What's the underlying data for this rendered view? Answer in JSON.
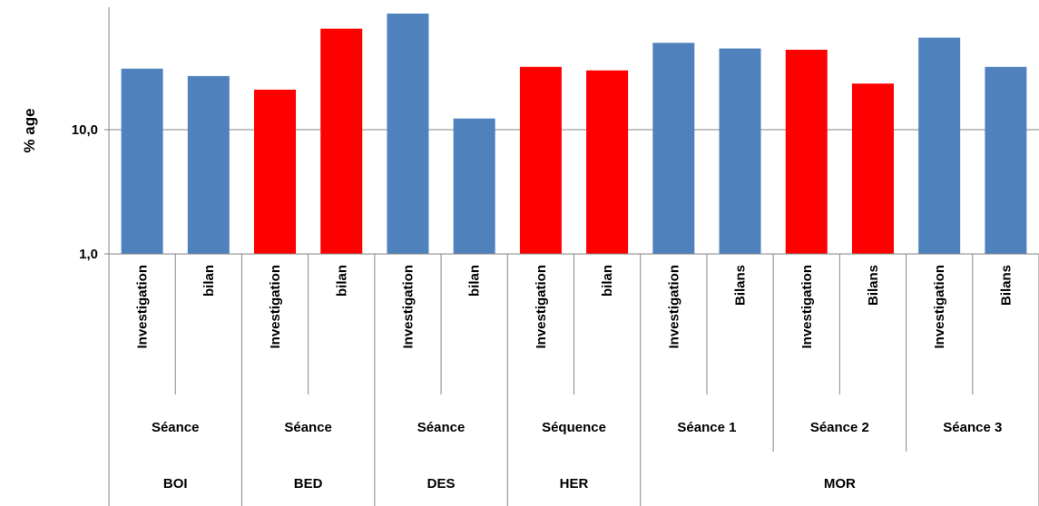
{
  "chart_data": {
    "type": "bar",
    "scale": "log",
    "ylabel": "% age",
    "ylim": [
      1,
      90
    ],
    "yticks": [
      {
        "value": 1,
        "label": "1,0"
      },
      {
        "value": 10,
        "label": "10,0"
      }
    ],
    "grid": true,
    "colors": {
      "blue": "#4F81BD",
      "red": "#FF0000"
    },
    "bars": [
      {
        "label": "Investigation",
        "value": 31,
        "color": "blue"
      },
      {
        "label": "bilan",
        "value": 27,
        "color": "blue"
      },
      {
        "label": "Investigation",
        "value": 21,
        "color": "red"
      },
      {
        "label": "bilan",
        "value": 65,
        "color": "red"
      },
      {
        "label": "Investigation",
        "value": 86,
        "color": "blue"
      },
      {
        "label": "bilan",
        "value": 12.3,
        "color": "blue"
      },
      {
        "label": "Investigation",
        "value": 32,
        "color": "red"
      },
      {
        "label": "bilan",
        "value": 30,
        "color": "red"
      },
      {
        "label": "Investigation",
        "value": 50,
        "color": "blue"
      },
      {
        "label": "Bilans",
        "value": 45,
        "color": "blue"
      },
      {
        "label": "Investigation",
        "value": 44,
        "color": "red"
      },
      {
        "label": "Bilans",
        "value": 23.5,
        "color": "red"
      },
      {
        "label": "Investigation",
        "value": 55,
        "color": "blue"
      },
      {
        "label": "Bilans",
        "value": 32,
        "color": "blue"
      }
    ],
    "level2": [
      {
        "label": "Séance",
        "span": 2
      },
      {
        "label": "Séance",
        "span": 2
      },
      {
        "label": "Séance",
        "span": 2
      },
      {
        "label": "Séquence",
        "span": 2
      },
      {
        "label": "Séance 1",
        "span": 2
      },
      {
        "label": "Séance 2",
        "span": 2
      },
      {
        "label": "Séance 3",
        "span": 2
      }
    ],
    "level3": [
      {
        "label": "BOI",
        "span": 2
      },
      {
        "label": "BED",
        "span": 2
      },
      {
        "label": "DES",
        "span": 2
      },
      {
        "label": "HER",
        "span": 2
      },
      {
        "label": "MOR",
        "span": 6
      }
    ]
  }
}
